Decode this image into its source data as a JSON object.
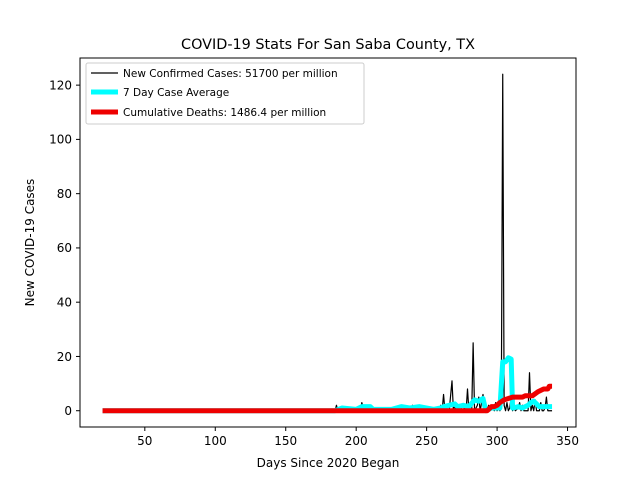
{
  "chart_data": {
    "type": "line",
    "title": "COVID-19 Stats For San Saba County, TX",
    "xlabel": "Days Since 2020 Began",
    "ylabel": "New COVID-19 Cases",
    "xlim": [
      4,
      356
    ],
    "ylim": [
      -6,
      130
    ],
    "x_ticks": [
      50,
      100,
      150,
      200,
      250,
      300,
      350
    ],
    "y_ticks": [
      0,
      20,
      40,
      60,
      80,
      100,
      120
    ],
    "grid": false,
    "legend_placement": "upper-left",
    "series": [
      {
        "name": "New Confirmed Cases: 51700 per million",
        "color": "#000000",
        "points": [
          [
            20,
            0
          ],
          [
            138,
            0
          ],
          [
            139,
            0.5
          ],
          [
            140,
            0
          ],
          [
            170,
            0
          ],
          [
            171,
            0.5
          ],
          [
            172,
            0
          ],
          [
            185,
            0
          ],
          [
            186,
            2
          ],
          [
            187,
            0
          ],
          [
            195,
            0
          ],
          [
            196,
            1
          ],
          [
            197,
            0
          ],
          [
            203,
            0
          ],
          [
            204,
            3
          ],
          [
            205,
            1
          ],
          [
            206,
            0
          ],
          [
            230,
            0
          ],
          [
            231,
            2
          ],
          [
            232,
            0
          ],
          [
            239,
            0
          ],
          [
            240,
            2
          ],
          [
            241,
            0
          ],
          [
            259,
            0
          ],
          [
            260,
            2
          ],
          [
            261,
            0
          ],
          [
            262,
            6
          ],
          [
            263,
            0
          ],
          [
            264,
            1
          ],
          [
            266,
            0
          ],
          [
            268,
            11
          ],
          [
            269,
            0
          ],
          [
            270,
            2
          ],
          [
            271,
            0
          ],
          [
            274,
            2
          ],
          [
            275,
            0
          ],
          [
            277,
            1
          ],
          [
            278,
            0
          ],
          [
            279,
            8
          ],
          [
            280,
            0
          ],
          [
            282,
            0
          ],
          [
            283,
            25
          ],
          [
            284,
            0
          ],
          [
            286,
            2
          ],
          [
            287,
            5
          ],
          [
            288,
            0
          ],
          [
            290,
            6
          ],
          [
            291,
            0
          ],
          [
            293,
            0
          ],
          [
            294,
            2
          ],
          [
            295,
            0
          ],
          [
            297,
            1
          ],
          [
            298,
            0
          ],
          [
            299,
            3
          ],
          [
            300,
            0
          ],
          [
            301,
            1
          ],
          [
            302,
            0
          ],
          [
            303,
            3
          ],
          [
            304,
            124
          ],
          [
            305,
            2
          ],
          [
            306,
            0
          ],
          [
            307,
            3
          ],
          [
            308,
            0
          ],
          [
            309,
            1
          ],
          [
            310,
            5
          ],
          [
            311,
            0
          ],
          [
            312,
            1
          ],
          [
            313,
            0
          ],
          [
            315,
            1
          ],
          [
            316,
            3
          ],
          [
            317,
            0
          ],
          [
            318,
            2
          ],
          [
            319,
            0
          ],
          [
            322,
            0
          ],
          [
            323,
            14
          ],
          [
            324,
            0
          ],
          [
            325,
            2
          ],
          [
            326,
            0
          ],
          [
            327,
            4
          ],
          [
            328,
            0
          ],
          [
            330,
            0
          ],
          [
            331,
            3
          ],
          [
            332,
            0
          ],
          [
            333,
            0
          ],
          [
            334,
            1
          ],
          [
            335,
            5
          ],
          [
            336,
            0
          ],
          [
            339,
            0
          ]
        ]
      },
      {
        "name": "7 Day Case Average",
        "color": "#00ffff",
        "points": [
          [
            20,
            0
          ],
          [
            185,
            0
          ],
          [
            190,
            1
          ],
          [
            200,
            0.5
          ],
          [
            204,
            1.5
          ],
          [
            210,
            1.5
          ],
          [
            212,
            0.5
          ],
          [
            225,
            0.5
          ],
          [
            232,
            1.5
          ],
          [
            238,
            1
          ],
          [
            245,
            1.5
          ],
          [
            255,
            0.5
          ],
          [
            260,
            1
          ],
          [
            262,
            1.5
          ],
          [
            266,
            2
          ],
          [
            270,
            2.5
          ],
          [
            272,
            1.5
          ],
          [
            276,
            2
          ],
          [
            280,
            1.5
          ],
          [
            284,
            4
          ],
          [
            287,
            3.5
          ],
          [
            290,
            4.5
          ],
          [
            292,
            0
          ],
          [
            296,
            1
          ],
          [
            300,
            1
          ],
          [
            302,
            1
          ],
          [
            304,
            18
          ],
          [
            306,
            18
          ],
          [
            308,
            19.5
          ],
          [
            310,
            19
          ],
          [
            311,
            1
          ],
          [
            315,
            1.5
          ],
          [
            318,
            1
          ],
          [
            322,
            2
          ],
          [
            324,
            3
          ],
          [
            326,
            3.5
          ],
          [
            328,
            2.5
          ],
          [
            330,
            1.5
          ],
          [
            333,
            1.5
          ],
          [
            335,
            1.5
          ],
          [
            339,
            1.5
          ]
        ]
      },
      {
        "name": "Cumulative Deaths: 1486.4 per million",
        "color": "#ee0000",
        "points": [
          [
            20,
            0
          ],
          [
            293,
            0
          ],
          [
            296,
            1.5
          ],
          [
            298,
            1.5
          ],
          [
            300,
            2
          ],
          [
            302,
            3
          ],
          [
            305,
            4
          ],
          [
            308,
            4.5
          ],
          [
            311,
            5
          ],
          [
            315,
            5
          ],
          [
            318,
            5
          ],
          [
            320,
            5.5
          ],
          [
            325,
            5.5
          ],
          [
            329,
            7
          ],
          [
            333,
            8
          ],
          [
            336,
            8
          ],
          [
            337,
            9
          ],
          [
            339,
            9
          ]
        ]
      }
    ]
  }
}
